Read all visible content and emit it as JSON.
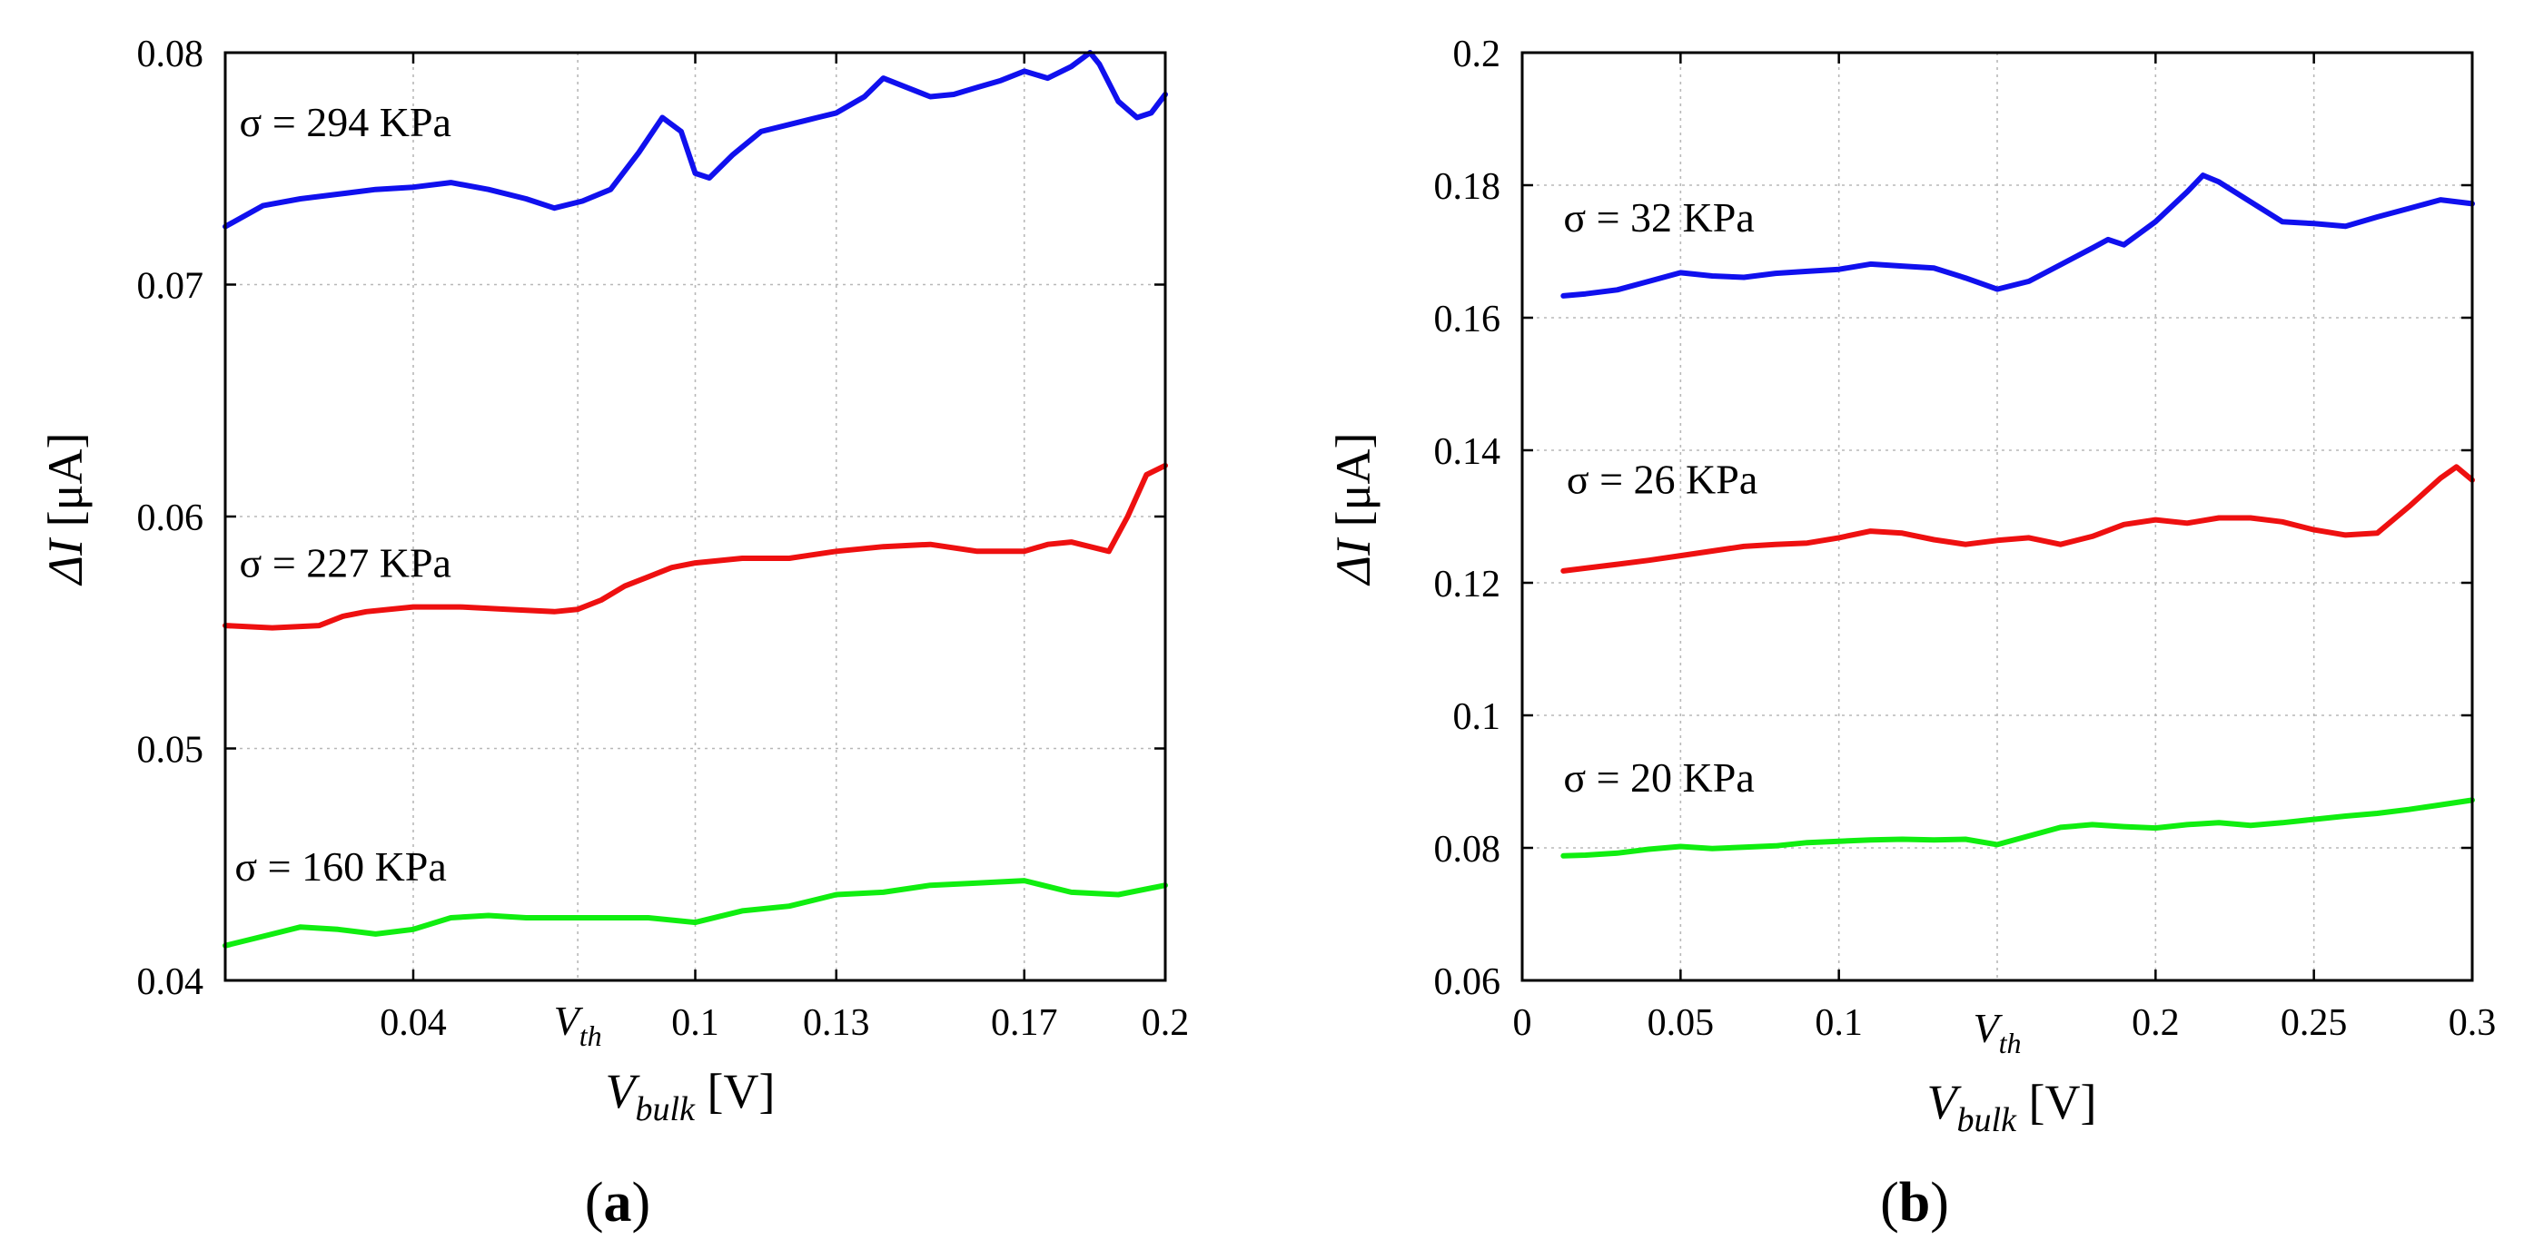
{
  "chart_data": [
    {
      "type": "line",
      "panel_label": "a",
      "xlabel": {
        "main": "V",
        "sub": "bulk",
        "unit": "[V]"
      },
      "ylabel": {
        "delta": "Δ",
        "symbol": "I",
        "unit": "[μA]"
      },
      "xlim": [
        0.0,
        0.2
      ],
      "ylim": [
        0.04,
        0.08
      ],
      "xticks": [
        {
          "value": 0.04,
          "label": "0.04"
        },
        {
          "value": 0.1,
          "label": "0.1"
        },
        {
          "value": 0.13,
          "label": "0.13"
        },
        {
          "value": 0.17,
          "label": "0.17"
        },
        {
          "value": 0.2,
          "label": "0.2"
        }
      ],
      "xgrid": [
        0.04,
        0.075,
        0.1,
        0.13,
        0.17
      ],
      "vth": {
        "value": 0.075,
        "main": "V",
        "sub": "th"
      },
      "yticks": [
        {
          "value": 0.04,
          "label": "0.04"
        },
        {
          "value": 0.05,
          "label": "0.05"
        },
        {
          "value": 0.06,
          "label": "0.06"
        },
        {
          "value": 0.07,
          "label": "0.07"
        },
        {
          "value": 0.08,
          "label": "0.08"
        }
      ],
      "series": [
        {
          "name": "σ = 294 KPa",
          "color": "#1010ee",
          "label_pos": {
            "x": 0.003,
            "y": 0.0764
          },
          "x": [
            0.0,
            0.008,
            0.016,
            0.024,
            0.032,
            0.04,
            0.048,
            0.056,
            0.064,
            0.07,
            0.076,
            0.082,
            0.088,
            0.093,
            0.097,
            0.1,
            0.103,
            0.108,
            0.114,
            0.12,
            0.126,
            0.13,
            0.136,
            0.14,
            0.145,
            0.15,
            0.155,
            0.16,
            0.165,
            0.17,
            0.175,
            0.18,
            0.184,
            0.186,
            0.19,
            0.194,
            0.197,
            0.2
          ],
          "values": [
            0.0725,
            0.0734,
            0.0737,
            0.0739,
            0.0741,
            0.0742,
            0.0744,
            0.0741,
            0.0737,
            0.0733,
            0.0736,
            0.0741,
            0.0757,
            0.0772,
            0.0766,
            0.0748,
            0.0746,
            0.0756,
            0.0766,
            0.0769,
            0.0772,
            0.0774,
            0.0781,
            0.0789,
            0.0785,
            0.0781,
            0.0782,
            0.0785,
            0.0788,
            0.0792,
            0.0789,
            0.0794,
            0.08,
            0.0795,
            0.0779,
            0.0772,
            0.0774,
            0.0782
          ]
        },
        {
          "name": "σ = 227 KPa",
          "color": "#ee1010",
          "label_pos": {
            "x": 0.003,
            "y": 0.0574
          },
          "x": [
            0.0,
            0.01,
            0.02,
            0.025,
            0.03,
            0.04,
            0.05,
            0.06,
            0.07,
            0.075,
            0.08,
            0.085,
            0.09,
            0.095,
            0.1,
            0.11,
            0.12,
            0.13,
            0.14,
            0.15,
            0.16,
            0.17,
            0.175,
            0.18,
            0.188,
            0.192,
            0.196,
            0.2
          ],
          "values": [
            0.0553,
            0.0552,
            0.0553,
            0.0557,
            0.0559,
            0.0561,
            0.0561,
            0.056,
            0.0559,
            0.056,
            0.0564,
            0.057,
            0.0574,
            0.0578,
            0.058,
            0.0582,
            0.0582,
            0.0585,
            0.0587,
            0.0588,
            0.0585,
            0.0585,
            0.0588,
            0.0589,
            0.0585,
            0.06,
            0.0618,
            0.0622
          ]
        },
        {
          "name": "σ = 160 KPa",
          "color": "#10ee10",
          "label_pos": {
            "x": 0.002,
            "y": 0.0443
          },
          "x": [
            0.0,
            0.008,
            0.016,
            0.024,
            0.032,
            0.04,
            0.048,
            0.056,
            0.064,
            0.072,
            0.08,
            0.09,
            0.1,
            0.11,
            0.12,
            0.13,
            0.14,
            0.15,
            0.16,
            0.17,
            0.18,
            0.19,
            0.2
          ],
          "values": [
            0.0415,
            0.0419,
            0.0423,
            0.0422,
            0.042,
            0.0422,
            0.0427,
            0.0428,
            0.0427,
            0.0427,
            0.0427,
            0.0427,
            0.0425,
            0.043,
            0.0432,
            0.0437,
            0.0438,
            0.0441,
            0.0442,
            0.0443,
            0.0438,
            0.0437,
            0.0441
          ]
        }
      ]
    },
    {
      "type": "line",
      "panel_label": "b",
      "xlabel": {
        "main": "V",
        "sub": "bulk",
        "unit": "[V]"
      },
      "ylabel": {
        "delta": "Δ",
        "symbol": "I",
        "unit": "[μA]"
      },
      "xlim": [
        0.0,
        0.3
      ],
      "ylim": [
        0.06,
        0.2
      ],
      "xticks": [
        {
          "value": 0.0,
          "label": "0"
        },
        {
          "value": 0.05,
          "label": "0.05"
        },
        {
          "value": 0.1,
          "label": "0.1"
        },
        {
          "value": 0.2,
          "label": "0.2"
        },
        {
          "value": 0.25,
          "label": "0.25"
        },
        {
          "value": 0.3,
          "label": "0.3"
        }
      ],
      "xgrid": [
        0.05,
        0.1,
        0.15,
        0.2,
        0.25
      ],
      "vth": {
        "value": 0.15,
        "main": "V",
        "sub": "th"
      },
      "yticks": [
        {
          "value": 0.06,
          "label": "0.06"
        },
        {
          "value": 0.08,
          "label": "0.08"
        },
        {
          "value": 0.1,
          "label": "0.1"
        },
        {
          "value": 0.12,
          "label": "0.12"
        },
        {
          "value": 0.14,
          "label": "0.14"
        },
        {
          "value": 0.16,
          "label": "0.16"
        },
        {
          "value": 0.18,
          "label": "0.18"
        },
        {
          "value": 0.2,
          "label": "0.2"
        }
      ],
      "series": [
        {
          "name": "σ = 32 KPa",
          "color": "#1010ee",
          "label_pos": {
            "x": 0.013,
            "y": 0.173
          },
          "x": [
            0.013,
            0.02,
            0.03,
            0.04,
            0.05,
            0.06,
            0.07,
            0.08,
            0.09,
            0.1,
            0.11,
            0.12,
            0.13,
            0.14,
            0.15,
            0.16,
            0.17,
            0.18,
            0.185,
            0.19,
            0.2,
            0.21,
            0.215,
            0.22,
            0.23,
            0.24,
            0.25,
            0.26,
            0.27,
            0.28,
            0.29,
            0.3
          ],
          "values": [
            0.1633,
            0.1636,
            0.1642,
            0.1655,
            0.1668,
            0.1663,
            0.1661,
            0.1667,
            0.167,
            0.1673,
            0.1681,
            0.1678,
            0.1675,
            0.166,
            0.1643,
            0.1655,
            0.168,
            0.1705,
            0.1718,
            0.171,
            0.1745,
            0.179,
            0.1815,
            0.1805,
            0.1775,
            0.1745,
            0.1742,
            0.1738,
            0.1752,
            0.1765,
            0.1778,
            0.1772
          ]
        },
        {
          "name": "σ = 26 KPa",
          "color": "#ee1010",
          "label_pos": {
            "x": 0.014,
            "y": 0.1335
          },
          "x": [
            0.013,
            0.02,
            0.03,
            0.04,
            0.05,
            0.06,
            0.07,
            0.08,
            0.09,
            0.1,
            0.11,
            0.12,
            0.13,
            0.14,
            0.15,
            0.16,
            0.17,
            0.18,
            0.19,
            0.2,
            0.21,
            0.22,
            0.23,
            0.24,
            0.25,
            0.26,
            0.27,
            0.28,
            0.29,
            0.295,
            0.3
          ],
          "values": [
            0.1218,
            0.1222,
            0.1228,
            0.1234,
            0.1241,
            0.1248,
            0.1255,
            0.1258,
            0.126,
            0.1268,
            0.1278,
            0.1275,
            0.1265,
            0.1258,
            0.1264,
            0.1268,
            0.1258,
            0.127,
            0.1288,
            0.1295,
            0.129,
            0.1298,
            0.1298,
            0.1292,
            0.128,
            0.1272,
            0.1275,
            0.1315,
            0.1358,
            0.1375,
            0.1355
          ]
        },
        {
          "name": "σ = 20 KPa",
          "color": "#10ee10",
          "label_pos": {
            "x": 0.013,
            "y": 0.0885
          },
          "x": [
            0.013,
            0.02,
            0.03,
            0.04,
            0.05,
            0.06,
            0.07,
            0.08,
            0.09,
            0.1,
            0.11,
            0.12,
            0.13,
            0.14,
            0.15,
            0.16,
            0.17,
            0.18,
            0.19,
            0.2,
            0.21,
            0.22,
            0.23,
            0.24,
            0.25,
            0.26,
            0.27,
            0.28,
            0.29,
            0.3
          ],
          "values": [
            0.0788,
            0.0789,
            0.0792,
            0.0798,
            0.0802,
            0.0799,
            0.0801,
            0.0803,
            0.0808,
            0.081,
            0.0812,
            0.0813,
            0.0812,
            0.0813,
            0.0805,
            0.0818,
            0.0831,
            0.0835,
            0.0832,
            0.083,
            0.0835,
            0.0838,
            0.0834,
            0.0838,
            0.0843,
            0.0848,
            0.0852,
            0.0858,
            0.0865,
            0.0872
          ]
        }
      ]
    }
  ]
}
